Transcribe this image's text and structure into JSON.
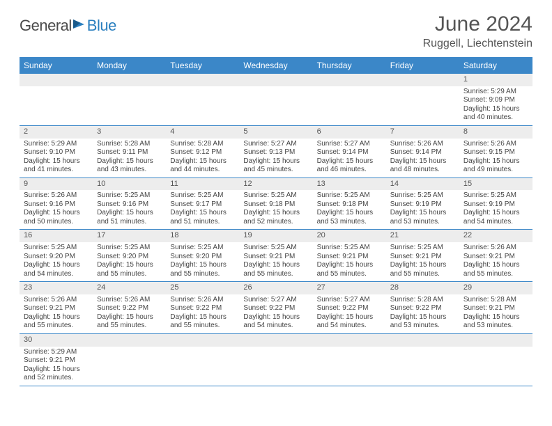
{
  "logo": {
    "general": "General",
    "blue": "Blue"
  },
  "title": "June 2024",
  "location": "Ruggell, Liechtenstein",
  "weekdays": [
    "Sunday",
    "Monday",
    "Tuesday",
    "Wednesday",
    "Thursday",
    "Friday",
    "Saturday"
  ],
  "colors": {
    "header_bg": "#3b87c8",
    "header_text": "#ffffff",
    "row_border": "#3b87c8",
    "daynum_bg": "#ededed",
    "text": "#444444",
    "logo_general": "#4a4a4a",
    "logo_blue": "#2a7fbf"
  },
  "weeks": [
    [
      null,
      null,
      null,
      null,
      null,
      null,
      {
        "n": "1",
        "sr": "Sunrise: 5:29 AM",
        "ss": "Sunset: 9:09 PM",
        "d1": "Daylight: 15 hours",
        "d2": "and 40 minutes."
      }
    ],
    [
      {
        "n": "2",
        "sr": "Sunrise: 5:29 AM",
        "ss": "Sunset: 9:10 PM",
        "d1": "Daylight: 15 hours",
        "d2": "and 41 minutes."
      },
      {
        "n": "3",
        "sr": "Sunrise: 5:28 AM",
        "ss": "Sunset: 9:11 PM",
        "d1": "Daylight: 15 hours",
        "d2": "and 43 minutes."
      },
      {
        "n": "4",
        "sr": "Sunrise: 5:28 AM",
        "ss": "Sunset: 9:12 PM",
        "d1": "Daylight: 15 hours",
        "d2": "and 44 minutes."
      },
      {
        "n": "5",
        "sr": "Sunrise: 5:27 AM",
        "ss": "Sunset: 9:13 PM",
        "d1": "Daylight: 15 hours",
        "d2": "and 45 minutes."
      },
      {
        "n": "6",
        "sr": "Sunrise: 5:27 AM",
        "ss": "Sunset: 9:14 PM",
        "d1": "Daylight: 15 hours",
        "d2": "and 46 minutes."
      },
      {
        "n": "7",
        "sr": "Sunrise: 5:26 AM",
        "ss": "Sunset: 9:14 PM",
        "d1": "Daylight: 15 hours",
        "d2": "and 48 minutes."
      },
      {
        "n": "8",
        "sr": "Sunrise: 5:26 AM",
        "ss": "Sunset: 9:15 PM",
        "d1": "Daylight: 15 hours",
        "d2": "and 49 minutes."
      }
    ],
    [
      {
        "n": "9",
        "sr": "Sunrise: 5:26 AM",
        "ss": "Sunset: 9:16 PM",
        "d1": "Daylight: 15 hours",
        "d2": "and 50 minutes."
      },
      {
        "n": "10",
        "sr": "Sunrise: 5:25 AM",
        "ss": "Sunset: 9:16 PM",
        "d1": "Daylight: 15 hours",
        "d2": "and 51 minutes."
      },
      {
        "n": "11",
        "sr": "Sunrise: 5:25 AM",
        "ss": "Sunset: 9:17 PM",
        "d1": "Daylight: 15 hours",
        "d2": "and 51 minutes."
      },
      {
        "n": "12",
        "sr": "Sunrise: 5:25 AM",
        "ss": "Sunset: 9:18 PM",
        "d1": "Daylight: 15 hours",
        "d2": "and 52 minutes."
      },
      {
        "n": "13",
        "sr": "Sunrise: 5:25 AM",
        "ss": "Sunset: 9:18 PM",
        "d1": "Daylight: 15 hours",
        "d2": "and 53 minutes."
      },
      {
        "n": "14",
        "sr": "Sunrise: 5:25 AM",
        "ss": "Sunset: 9:19 PM",
        "d1": "Daylight: 15 hours",
        "d2": "and 53 minutes."
      },
      {
        "n": "15",
        "sr": "Sunrise: 5:25 AM",
        "ss": "Sunset: 9:19 PM",
        "d1": "Daylight: 15 hours",
        "d2": "and 54 minutes."
      }
    ],
    [
      {
        "n": "16",
        "sr": "Sunrise: 5:25 AM",
        "ss": "Sunset: 9:20 PM",
        "d1": "Daylight: 15 hours",
        "d2": "and 54 minutes."
      },
      {
        "n": "17",
        "sr": "Sunrise: 5:25 AM",
        "ss": "Sunset: 9:20 PM",
        "d1": "Daylight: 15 hours",
        "d2": "and 55 minutes."
      },
      {
        "n": "18",
        "sr": "Sunrise: 5:25 AM",
        "ss": "Sunset: 9:20 PM",
        "d1": "Daylight: 15 hours",
        "d2": "and 55 minutes."
      },
      {
        "n": "19",
        "sr": "Sunrise: 5:25 AM",
        "ss": "Sunset: 9:21 PM",
        "d1": "Daylight: 15 hours",
        "d2": "and 55 minutes."
      },
      {
        "n": "20",
        "sr": "Sunrise: 5:25 AM",
        "ss": "Sunset: 9:21 PM",
        "d1": "Daylight: 15 hours",
        "d2": "and 55 minutes."
      },
      {
        "n": "21",
        "sr": "Sunrise: 5:25 AM",
        "ss": "Sunset: 9:21 PM",
        "d1": "Daylight: 15 hours",
        "d2": "and 55 minutes."
      },
      {
        "n": "22",
        "sr": "Sunrise: 5:26 AM",
        "ss": "Sunset: 9:21 PM",
        "d1": "Daylight: 15 hours",
        "d2": "and 55 minutes."
      }
    ],
    [
      {
        "n": "23",
        "sr": "Sunrise: 5:26 AM",
        "ss": "Sunset: 9:21 PM",
        "d1": "Daylight: 15 hours",
        "d2": "and 55 minutes."
      },
      {
        "n": "24",
        "sr": "Sunrise: 5:26 AM",
        "ss": "Sunset: 9:22 PM",
        "d1": "Daylight: 15 hours",
        "d2": "and 55 minutes."
      },
      {
        "n": "25",
        "sr": "Sunrise: 5:26 AM",
        "ss": "Sunset: 9:22 PM",
        "d1": "Daylight: 15 hours",
        "d2": "and 55 minutes."
      },
      {
        "n": "26",
        "sr": "Sunrise: 5:27 AM",
        "ss": "Sunset: 9:22 PM",
        "d1": "Daylight: 15 hours",
        "d2": "and 54 minutes."
      },
      {
        "n": "27",
        "sr": "Sunrise: 5:27 AM",
        "ss": "Sunset: 9:22 PM",
        "d1": "Daylight: 15 hours",
        "d2": "and 54 minutes."
      },
      {
        "n": "28",
        "sr": "Sunrise: 5:28 AM",
        "ss": "Sunset: 9:22 PM",
        "d1": "Daylight: 15 hours",
        "d2": "and 53 minutes."
      },
      {
        "n": "29",
        "sr": "Sunrise: 5:28 AM",
        "ss": "Sunset: 9:21 PM",
        "d1": "Daylight: 15 hours",
        "d2": "and 53 minutes."
      }
    ],
    [
      {
        "n": "30",
        "sr": "Sunrise: 5:29 AM",
        "ss": "Sunset: 9:21 PM",
        "d1": "Daylight: 15 hours",
        "d2": "and 52 minutes."
      },
      null,
      null,
      null,
      null,
      null,
      null
    ]
  ]
}
